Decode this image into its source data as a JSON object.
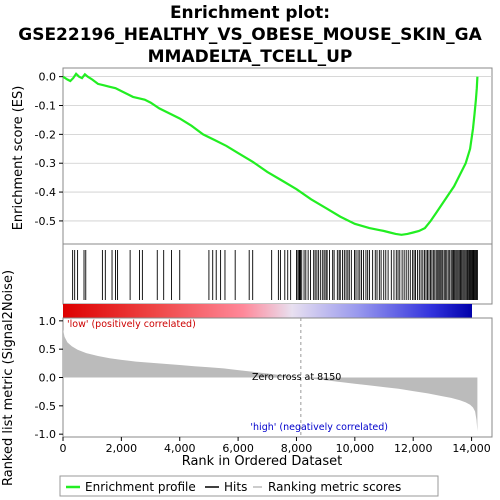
{
  "title_lines": [
    "Enrichment plot:",
    "GSE22196_HEALTHY_VS_OBESE_MOUSE_SKIN_GA",
    "MMADELTA_TCELL_UP"
  ],
  "colors": {
    "es_line": "#22ee22",
    "hits": "#000000",
    "metric_fill": "#bbbbbb",
    "low_text": "#cc0000",
    "high_text": "#0000cc",
    "grid": "#cccccc"
  },
  "chart_data": {
    "type": "line",
    "es_panel": {
      "ylabel": "Enrichment score (ES)",
      "ylim": [
        -0.58,
        0.03
      ],
      "yticks": [
        0.0,
        -0.1,
        -0.2,
        -0.3,
        -0.4,
        -0.5
      ],
      "ytick_labels": [
        "0.0",
        "-0.1",
        "-0.2",
        "-0.3",
        "-0.4",
        "-0.5"
      ],
      "series": [
        {
          "x": [
            0,
            150,
            250,
            350,
            450,
            550,
            650,
            750,
            850,
            1000,
            1200,
            1400,
            1600,
            1800,
            2000,
            2200,
            2400,
            2600,
            2800,
            3000,
            3300,
            3600,
            4000,
            4400,
            4800,
            5200,
            5600,
            6000,
            6500,
            7000,
            7500,
            8000,
            8500,
            9000,
            9500,
            10000,
            10500,
            11000,
            11200,
            11400,
            11600,
            11800,
            12000,
            12200,
            12400,
            12600,
            12800,
            13000,
            13200,
            13400,
            13600,
            13800,
            13950,
            14050,
            14100,
            14150,
            14180,
            14200
          ],
          "y": [
            0.0,
            -0.01,
            -0.015,
            -0.005,
            0.01,
            0.0,
            -0.005,
            0.008,
            0.0,
            -0.01,
            -0.025,
            -0.03,
            -0.035,
            -0.04,
            -0.05,
            -0.06,
            -0.07,
            -0.075,
            -0.08,
            -0.09,
            -0.11,
            -0.125,
            -0.145,
            -0.17,
            -0.2,
            -0.22,
            -0.24,
            -0.265,
            -0.295,
            -0.33,
            -0.36,
            -0.39,
            -0.425,
            -0.455,
            -0.485,
            -0.51,
            -0.525,
            -0.535,
            -0.54,
            -0.545,
            -0.548,
            -0.545,
            -0.54,
            -0.535,
            -0.525,
            -0.5,
            -0.47,
            -0.44,
            -0.41,
            -0.38,
            -0.34,
            -0.3,
            -0.25,
            -0.18,
            -0.13,
            -0.08,
            -0.04,
            0.0
          ]
        }
      ]
    },
    "hits_panel": {
      "hit_ranks": [
        330,
        400,
        500,
        720,
        780,
        1350,
        1450,
        1680,
        1800,
        1870,
        2300,
        2620,
        2720,
        3230,
        3450,
        3720,
        4000,
        5000,
        5130,
        5250,
        5400,
        5550,
        5900,
        6380,
        6500,
        7150,
        7380,
        7450,
        7600,
        7700,
        7800,
        8000,
        8050,
        8090,
        8110,
        8140,
        8180,
        8260,
        8320,
        8400,
        8480,
        8590,
        8640,
        8700,
        8760,
        8830,
        8900,
        8950,
        9010,
        9050,
        9130,
        9240,
        9290,
        9400,
        9460,
        9500,
        9580,
        9640,
        9700,
        9760,
        9810,
        9880,
        9990,
        10040,
        10110,
        10170,
        10230,
        10300,
        10380,
        10440,
        10500,
        10610,
        10700,
        10760,
        10840,
        10900,
        10990,
        11060,
        11140,
        11250,
        11340,
        11420,
        11480,
        11540,
        11620,
        11690,
        11760,
        11830,
        11900,
        11980,
        12030,
        12080,
        12150,
        12210,
        12270,
        12330,
        12390,
        12440,
        12490,
        12540,
        12590,
        12640,
        12690,
        12740,
        12790,
        12840,
        12880,
        12920,
        12960,
        13010,
        13060,
        13100,
        13150,
        13200,
        13250,
        13300,
        13340,
        13380,
        13420,
        13460,
        13500,
        13540,
        13580,
        13620,
        13660,
        13700,
        13740,
        13780,
        13820,
        13860,
        13900,
        13930,
        13960,
        13990,
        14020,
        14050,
        14080,
        14110,
        14140,
        14170,
        14200
      ]
    },
    "metric_panel": {
      "ylabel": "Ranked list metric (Signal2Noise)",
      "ylim": [
        -1.05,
        1.05
      ],
      "yticks": [
        1.0,
        0.5,
        0.0,
        -0.5,
        -1.0
      ],
      "ytick_labels": [
        "1.0",
        "0.5",
        "0.0",
        "-0.5",
        "-1.0"
      ],
      "x": [
        0,
        50,
        150,
        300,
        500,
        800,
        1200,
        1600,
        2000,
        2500,
        3000,
        3500,
        4000,
        4500,
        5000,
        5500,
        6000,
        6500,
        7000,
        7500,
        8000,
        8150,
        8500,
        9000,
        9500,
        10000,
        10500,
        11000,
        11500,
        12000,
        12500,
        13000,
        13300,
        13600,
        13800,
        13950,
        14050,
        14120,
        14170,
        14200
      ],
      "values": [
        0.85,
        0.72,
        0.62,
        0.55,
        0.49,
        0.43,
        0.38,
        0.34,
        0.31,
        0.28,
        0.26,
        0.24,
        0.22,
        0.2,
        0.18,
        0.16,
        0.13,
        0.1,
        0.07,
        0.04,
        0.01,
        0.0,
        -0.02,
        -0.05,
        -0.08,
        -0.11,
        -0.14,
        -0.17,
        -0.2,
        -0.24,
        -0.28,
        -0.33,
        -0.36,
        -0.4,
        -0.44,
        -0.48,
        -0.53,
        -0.6,
        -0.75,
        -0.95
      ]
    },
    "xaxis": {
      "label": "Rank in Ordered Dataset",
      "xlim": [
        0,
        14700
      ],
      "ticks": [
        0,
        2000,
        4000,
        6000,
        8000,
        10000,
        12000,
        14000
      ],
      "tick_labels": [
        "0",
        "2,000",
        "4,000",
        "6,000",
        "8,000",
        "10,000",
        "12,000",
        "14,000"
      ],
      "total_ranks": 14200
    },
    "annotations": {
      "low_label": "'low' (positively correlated)",
      "high_label": "'high' (negatively correlated)",
      "zero_cross_label": "Zero cross at 8150",
      "zero_cross_rank": 8150
    },
    "legend": {
      "placement": "bottom",
      "entries": [
        "Enrichment profile",
        "Hits",
        "Ranking metric scores"
      ]
    }
  }
}
